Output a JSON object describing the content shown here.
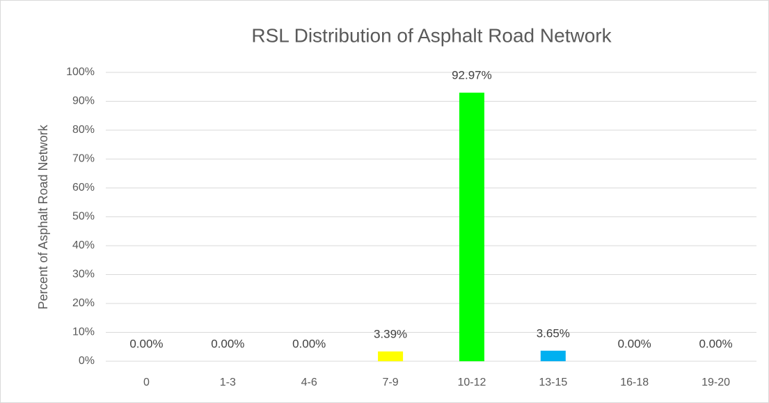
{
  "chart_data": {
    "type": "bar",
    "title": "RSL Distribution of Asphalt Road Network",
    "y_label": "Percent of Asphalt Road Network",
    "categories": [
      "0",
      "1-3",
      "4-6",
      "7-9",
      "10-12",
      "13-15",
      "16-18",
      "19-20"
    ],
    "values": [
      0,
      0,
      0,
      3.39,
      92.97,
      3.65,
      0,
      0
    ],
    "value_labels": [
      "0.00%",
      "0.00%",
      "0.00%",
      "3.39%",
      "92.97%",
      "3.65%",
      "0.00%",
      "0.00%"
    ],
    "colors": [
      "#4472c4",
      "#4472c4",
      "#4472c4",
      "#ffff00",
      "#00ff00",
      "#00b0f0",
      "#4472c4",
      "#4472c4"
    ],
    "ylim": [
      0,
      100
    ],
    "yticks": [
      {
        "value": 0,
        "label": "0%"
      },
      {
        "value": 10,
        "label": "10%"
      },
      {
        "value": 20,
        "label": "20%"
      },
      {
        "value": 30,
        "label": "30%"
      },
      {
        "value": 40,
        "label": "40%"
      },
      {
        "value": 50,
        "label": "50%"
      },
      {
        "value": 60,
        "label": "60%"
      },
      {
        "value": 70,
        "label": "70%"
      },
      {
        "value": 80,
        "label": "80%"
      },
      {
        "value": 90,
        "label": "90%"
      },
      {
        "value": 100,
        "label": "100%"
      }
    ],
    "grid": true
  }
}
